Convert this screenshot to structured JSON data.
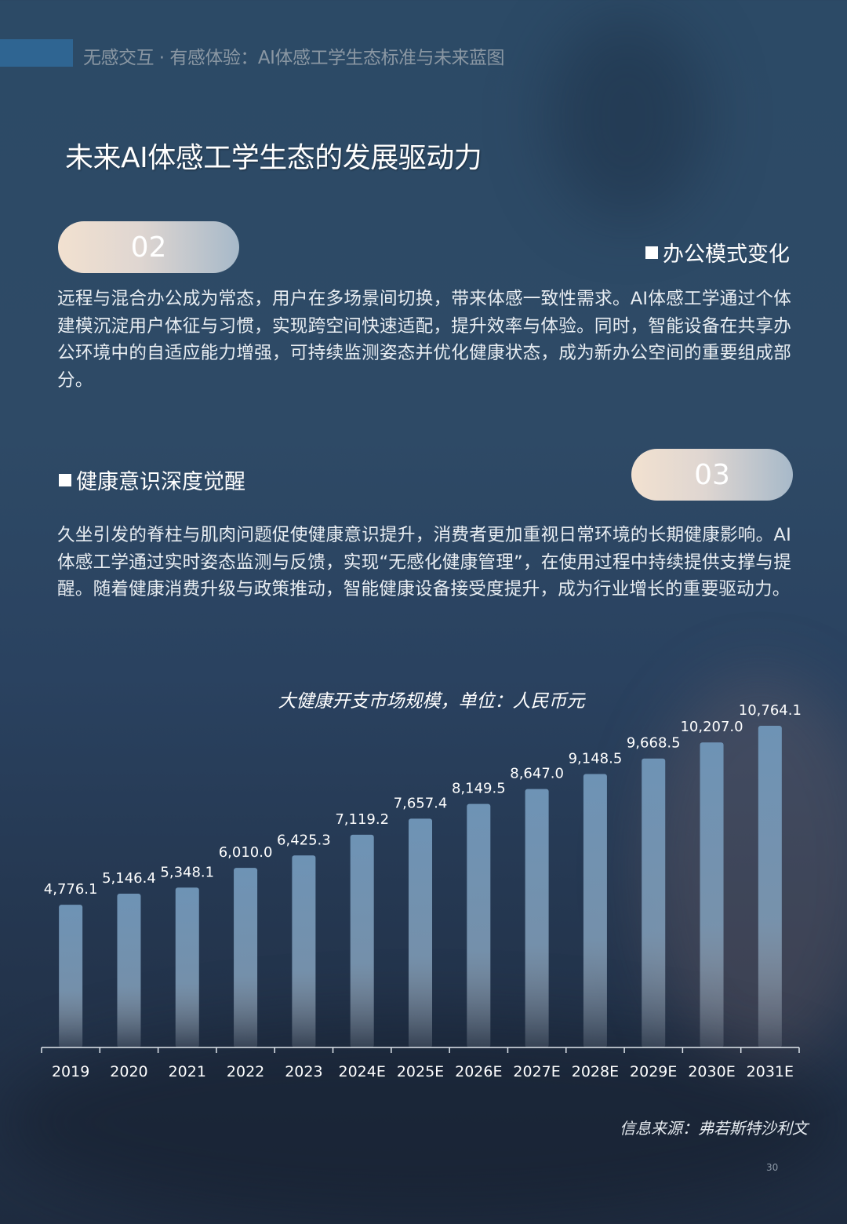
{
  "header": {
    "running_title": "无感交互 · 有感体验：AI体感工学生态标准与未来蓝图"
  },
  "page_title": "未来AI体感工学生态的发展驱动力",
  "sections": [
    {
      "number": "02",
      "heading": "办公模式变化",
      "body": "远程与混合办公成为常态，用户在多场景间切换，带来体感一致性需求。AI体感工学通过个体建模沉淀用户体征与习惯，实现跨空间快速适配，提升效率与体验。同时，智能设备在共享办公环境中的自适应能力增强，可持续监测姿态并优化健康状态，成为新办公空间的重要组成部分。"
    },
    {
      "number": "03",
      "heading": "健康意识深度觉醒",
      "body": "久坐引发的脊柱与肌肉问题促使健康意识提升，消费者更加重视日常环境的长期健康影响。AI体感工学通过实时姿态监测与反馈，实现“无感化健康管理”，在使用过程中持续提供支撑与提醒。随着健康消费升级与政策推动，智能健康设备接受度提升，成为行业增长的重要驱动力。"
    }
  ],
  "chart_data": {
    "type": "bar",
    "title": "大健康开支市场规模，单位：人民币元",
    "categories": [
      "2019",
      "2020",
      "2021",
      "2022",
      "2023",
      "2024E",
      "2025E",
      "2026E",
      "2027E",
      "2028E",
      "2029E",
      "2030E",
      "2031E"
    ],
    "values": [
      4776.1,
      5146.4,
      5348.1,
      6010.0,
      6425.3,
      7119.2,
      7657.4,
      8149.5,
      8647.0,
      9148.5,
      9668.5,
      10207.0,
      10764.1
    ],
    "labels": [
      "4,776.1",
      "5,146.4",
      "5,348.1",
      "6,010.0",
      "6,425.3",
      "7,119.2",
      "7,657.4",
      "8,149.5",
      "8,647.0",
      "9,148.5",
      "9,668.5",
      "10,207.0",
      "10,764.1"
    ],
    "ylim": [
      0,
      10764.1
    ],
    "grid": false,
    "bar_color": "#6e93b5"
  },
  "source": "信息来源：弗若斯特沙利文",
  "page_number": "30"
}
